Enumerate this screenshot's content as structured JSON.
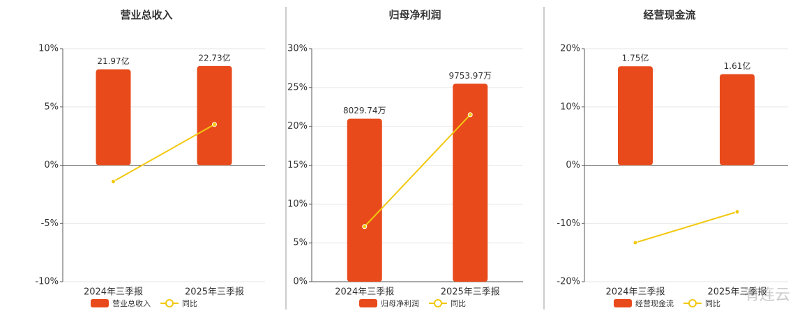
{
  "chart_data": [
    {
      "type": "combo",
      "title": "营业总收入",
      "categories": [
        "2024年三季报",
        "2025年三季报"
      ],
      "series": [
        {
          "name": "营业总收入",
          "type": "bar",
          "color": "#e84a1b",
          "axis": "y2",
          "values": [
            21.97,
            22.73
          ],
          "value_labels": [
            "21.97亿",
            "22.73亿"
          ]
        },
        {
          "name": "同比",
          "type": "line",
          "color": "#f2c80f",
          "values": [
            -1.4,
            3.5
          ]
        }
      ],
      "ylim": [
        -10,
        10
      ],
      "yticks": [
        {
          "value": -10,
          "label": "-10%"
        },
        {
          "value": -5,
          "label": "-5%"
        },
        {
          "value": 0,
          "label": "0%"
        },
        {
          "value": 5,
          "label": "5%"
        },
        {
          "value": 10,
          "label": "10%"
        }
      ],
      "y2lim": [
        -26.7,
        26.7
      ],
      "grid": true
    },
    {
      "type": "combo",
      "title": "归母净利润",
      "categories": [
        "2024年三季报",
        "2025年三季报"
      ],
      "series": [
        {
          "name": "归母净利润",
          "type": "bar",
          "color": "#e84a1b",
          "axis": "y2",
          "values": [
            8029.74,
            9753.97
          ],
          "value_labels": [
            "8029.74万",
            "9753.97万"
          ]
        },
        {
          "name": "同比",
          "type": "line",
          "color": "#f2c80f",
          "values": [
            7.1,
            21.5
          ]
        }
      ],
      "ylim": [
        0,
        30
      ],
      "yticks": [
        {
          "value": 0,
          "label": "0%"
        },
        {
          "value": 5,
          "label": "5%"
        },
        {
          "value": 10,
          "label": "10%"
        },
        {
          "value": 15,
          "label": "15%"
        },
        {
          "value": 20,
          "label": "20%"
        },
        {
          "value": 25,
          "label": "25%"
        },
        {
          "value": 30,
          "label": "30%"
        }
      ],
      "y2lim": [
        0,
        11480
      ],
      "grid": true
    },
    {
      "type": "combo",
      "title": "经营现金流",
      "categories": [
        "2024年三季报",
        "2025年三季报"
      ],
      "series": [
        {
          "name": "经营现金流",
          "type": "bar",
          "color": "#e84a1b",
          "axis": "y2",
          "values": [
            1.75,
            1.61
          ],
          "value_labels": [
            "1.75亿",
            "1.61亿"
          ]
        },
        {
          "name": "同比",
          "type": "line",
          "color": "#f2c80f",
          "values": [
            -13.3,
            -8.0
          ]
        }
      ],
      "ylim": [
        -20,
        20
      ],
      "yticks": [
        {
          "value": -20,
          "label": "-20%"
        },
        {
          "value": -10,
          "label": "-10%"
        },
        {
          "value": 0,
          "label": "0%"
        },
        {
          "value": 10,
          "label": "10%"
        },
        {
          "value": 20,
          "label": "20%"
        }
      ],
      "y2lim": [
        -2.06,
        2.06
      ],
      "grid": true
    }
  ],
  "watermark": "有连云"
}
